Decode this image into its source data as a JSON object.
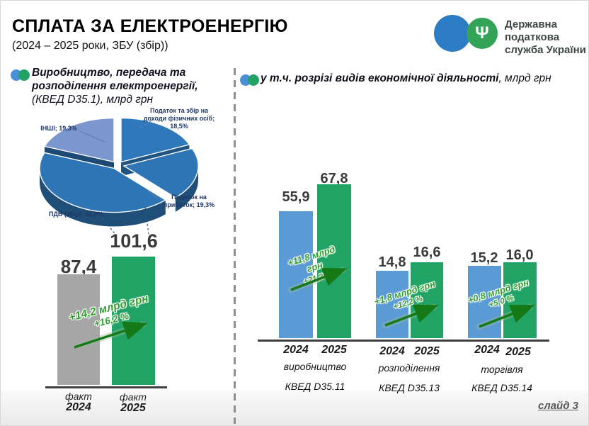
{
  "page": {
    "title": "СПЛАТА ЗА ЕЛЕКТРОЕНЕРГІЮ",
    "subtitle": "(2024 – 2025  роки, ЗБУ (збір))",
    "slide_label": "слайд 3"
  },
  "logo": {
    "line1": "Державна",
    "line2": "податкова",
    "line3": "служба України",
    "trident_glyph": "Ψ",
    "colors": {
      "blue_circle": "#2b7cc5",
      "green_circle": "#33a457"
    }
  },
  "left": {
    "line1": "Виробництво, передача та",
    "line2": "розподілення електроенергії,",
    "note": "(КВЕД D35.1), млрд грн"
  },
  "right": {
    "label": "у т.ч. розрізі видів економічної діяльності",
    "note": ", млрд грн"
  },
  "colors": {
    "bar_blue": "#5b9bd5",
    "bar_green": "#21a366",
    "bar_gray": "#a6a6a6",
    "pie_blue": "#2e75b6",
    "pie_light_blue": "#7b97ce",
    "pie_side": "#1f4e79",
    "arrow_green": "#157a15",
    "annotation_green": "#2f9e2f",
    "pie_label_navy": "#1f3864"
  },
  "chart_data": [
    {
      "type": "pie",
      "units": "% структури",
      "slices": [
        {
          "label": "Податок та збір на доходи фізичних осіб",
          "value": 18.5,
          "display": "Податок та збір на доходи фізичних осіб; 18,5%"
        },
        {
          "label": "Податок на прибуток",
          "value": 19.3,
          "display": "Податок на прибуток; 19,3%"
        },
        {
          "label": "ПДВ (збір)",
          "value": 43.0,
          "display": "ПДВ (збір); 43,0%"
        },
        {
          "label": "ІНШІ",
          "value": 19.3,
          "display": "ІНШІ; 19,3%"
        }
      ]
    },
    {
      "type": "bar",
      "title": "Виробництво, передача та розподілення електроенергії (КВЕД D35.1)",
      "ylabel": "млрд грн",
      "categories": [
        "факт 2024",
        "факт 2025"
      ],
      "cat_top": [
        "факт",
        "факт"
      ],
      "cat_bottom": [
        "2024",
        "2025"
      ],
      "values": [
        87.4,
        101.6
      ],
      "value_labels": [
        "87,4",
        "101,6"
      ],
      "annotation": {
        "delta": "+14,2 млрд грн",
        "pct": "+16,2 %"
      },
      "colors": [
        "#a6a6a6",
        "#21a366"
      ]
    },
    {
      "type": "bar",
      "title": "у т.ч. розрізі видів економічної діяльності",
      "ylabel": "млрд грн",
      "years": [
        "2024",
        "2025"
      ],
      "series_colors": {
        "2024": "#5b9bd5",
        "2025": "#21a366"
      },
      "groups": [
        {
          "category": "виробництво",
          "kved": "КВЕД D35.11",
          "values": [
            55.9,
            67.8
          ],
          "value_labels": [
            "55,9",
            "67,8"
          ],
          "annotation": {
            "delta": "+11,8 млрд грн",
            "pct": "+21,2 %"
          }
        },
        {
          "category": "розподілення",
          "kved": "КВЕД D35.13",
          "values": [
            14.8,
            16.6
          ],
          "value_labels": [
            "14,8",
            "16,6"
          ],
          "annotation": {
            "delta": "+1,8 млрд грн",
            "pct": "+12,2 %"
          }
        },
        {
          "category": "торгівля",
          "kved": "КВЕД D35.14",
          "values": [
            15.2,
            16.0
          ],
          "value_labels": [
            "15,2",
            "16,0"
          ],
          "annotation": {
            "delta": "+0,8 млрд грн",
            "pct": "+5,0 %"
          }
        }
      ]
    }
  ]
}
